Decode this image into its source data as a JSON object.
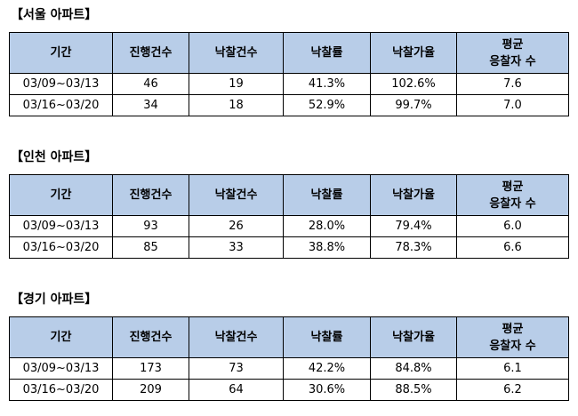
{
  "columns": [
    "기간",
    "진행건수",
    "낙찰건수",
    "낙찰률",
    "낙찰가율",
    "평균",
    "응찰자 수"
  ],
  "sections": [
    {
      "title": "【서울 아파트】",
      "rows": [
        {
          "period": "03/09~03/13",
          "cases": "46",
          "sold": "19",
          "sale_rate": "41.3%",
          "price_ratio": "102.6%",
          "avg_bidders": "7.6"
        },
        {
          "period": "03/16~03/20",
          "cases": "34",
          "sold": "18",
          "sale_rate": "52.9%",
          "price_ratio": "99.7%",
          "avg_bidders": "7.0"
        }
      ]
    },
    {
      "title": "【인천 아파트】",
      "rows": [
        {
          "period": "03/09~03/13",
          "cases": "93",
          "sold": "26",
          "sale_rate": "28.0%",
          "price_ratio": "79.4%",
          "avg_bidders": "6.0"
        },
        {
          "period": "03/16~03/20",
          "cases": "85",
          "sold": "33",
          "sale_rate": "38.8%",
          "price_ratio": "78.3%",
          "avg_bidders": "6.6"
        }
      ]
    },
    {
      "title": "【경기 아파트】",
      "rows": [
        {
          "period": "03/09~03/13",
          "cases": "173",
          "sold": "73",
          "sale_rate": "42.2%",
          "price_ratio": "84.8%",
          "avg_bidders": "6.1"
        },
        {
          "period": "03/16~03/20",
          "cases": "209",
          "sold": "64",
          "sale_rate": "30.6%",
          "price_ratio": "88.5%",
          "avg_bidders": "6.2"
        }
      ]
    }
  ]
}
